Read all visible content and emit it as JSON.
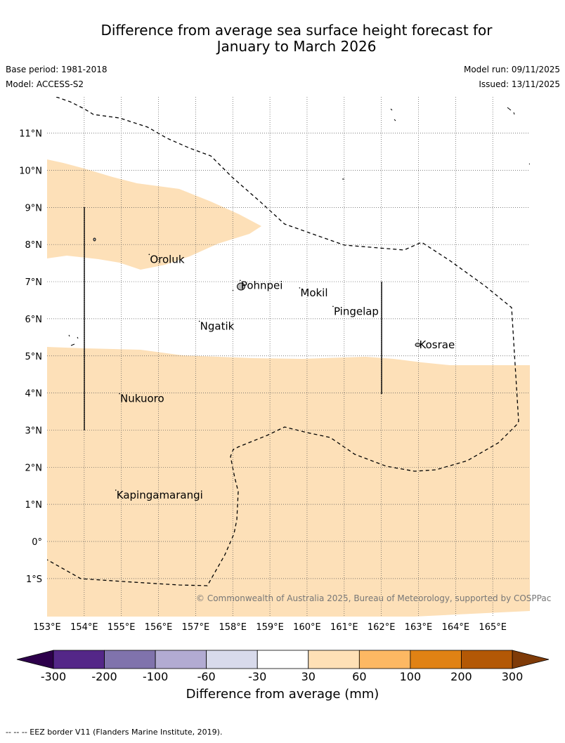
{
  "header": {
    "title_line1": "Difference from average sea surface height forecast for",
    "title_line2": "January to March 2026",
    "base_period": "Base period: 1981-2018",
    "model": "Model: ACCESS-S2",
    "model_run": "Model run: 09/11/2025",
    "issued": "Issued: 13/11/2025"
  },
  "map": {
    "lon_range": [
      153,
      166
    ],
    "lat_range": [
      -2,
      12
    ],
    "lon_ticks": [
      {
        "value": 153,
        "label": "153°E"
      },
      {
        "value": 154,
        "label": "154°E"
      },
      {
        "value": 155,
        "label": "155°E"
      },
      {
        "value": 156,
        "label": "156°E"
      },
      {
        "value": 157,
        "label": "157°E"
      },
      {
        "value": 158,
        "label": "158°E"
      },
      {
        "value": 159,
        "label": "159°E"
      },
      {
        "value": 160,
        "label": "160°E"
      },
      {
        "value": 161,
        "label": "161°E"
      },
      {
        "value": 162,
        "label": "162°E"
      },
      {
        "value": 163,
        "label": "163°E"
      },
      {
        "value": 164,
        "label": "164°E"
      },
      {
        "value": 165,
        "label": "165°E"
      }
    ],
    "lat_ticks": [
      {
        "value": 11,
        "label": "11°N"
      },
      {
        "value": 10,
        "label": "10°N"
      },
      {
        "value": 9,
        "label": "9°N"
      },
      {
        "value": 8,
        "label": "8°N"
      },
      {
        "value": 7,
        "label": "7°N"
      },
      {
        "value": 6,
        "label": "6°N"
      },
      {
        "value": 5,
        "label": "5°N"
      },
      {
        "value": 4,
        "label": "4°N"
      },
      {
        "value": 3,
        "label": "3°N"
      },
      {
        "value": 2,
        "label": "2°N"
      },
      {
        "value": 1,
        "label": "1°N"
      },
      {
        "value": 0,
        "label": "0°"
      },
      {
        "value": -1,
        "label": "1°S"
      }
    ],
    "anomaly_fill": "#fde0b8",
    "places": [
      {
        "name": "Oroluk",
        "lon": 155.75,
        "lat": 7.6
      },
      {
        "name": "Pohnpei",
        "lon": 158.2,
        "lat": 6.9
      },
      {
        "name": "Mokil",
        "lon": 159.8,
        "lat": 6.7
      },
      {
        "name": "Pingelap",
        "lon": 160.7,
        "lat": 6.2
      },
      {
        "name": "Ngatik",
        "lon": 157.1,
        "lat": 5.8
      },
      {
        "name": "Kosrae",
        "lon": 163.0,
        "lat": 5.3
      },
      {
        "name": "Nukuoro",
        "lon": 154.95,
        "lat": 3.85
      },
      {
        "name": "Kapingamarangi",
        "lon": 154.85,
        "lat": 1.25
      }
    ],
    "copyright": "© Commonwealth of Australia 2025, Bureau of Meteorology, supported by COSPPac"
  },
  "colorbar": {
    "title": "Difference from average (mm)",
    "bins": [
      {
        "color": "#542788",
        "label": "-300"
      },
      {
        "color": "#8073ac",
        "label": "-200"
      },
      {
        "color": "#b2abd2",
        "label": "-100"
      },
      {
        "color": "#d8daeb",
        "label": "-60"
      },
      {
        "color": "#ffffff",
        "label": "-30"
      },
      {
        "color": "#fee0b6",
        "label": "30"
      },
      {
        "color": "#fdb863",
        "label": "60"
      },
      {
        "color": "#e08214",
        "label": "100"
      },
      {
        "color": "#b35806",
        "label": "200"
      }
    ],
    "last_label": "300",
    "under_color": "#2d004b",
    "over_color": "#7f3b08"
  },
  "footer": {
    "eez_note": "--  --  -- EEZ border V11 (Flanders Marine Institute, 2019)."
  }
}
